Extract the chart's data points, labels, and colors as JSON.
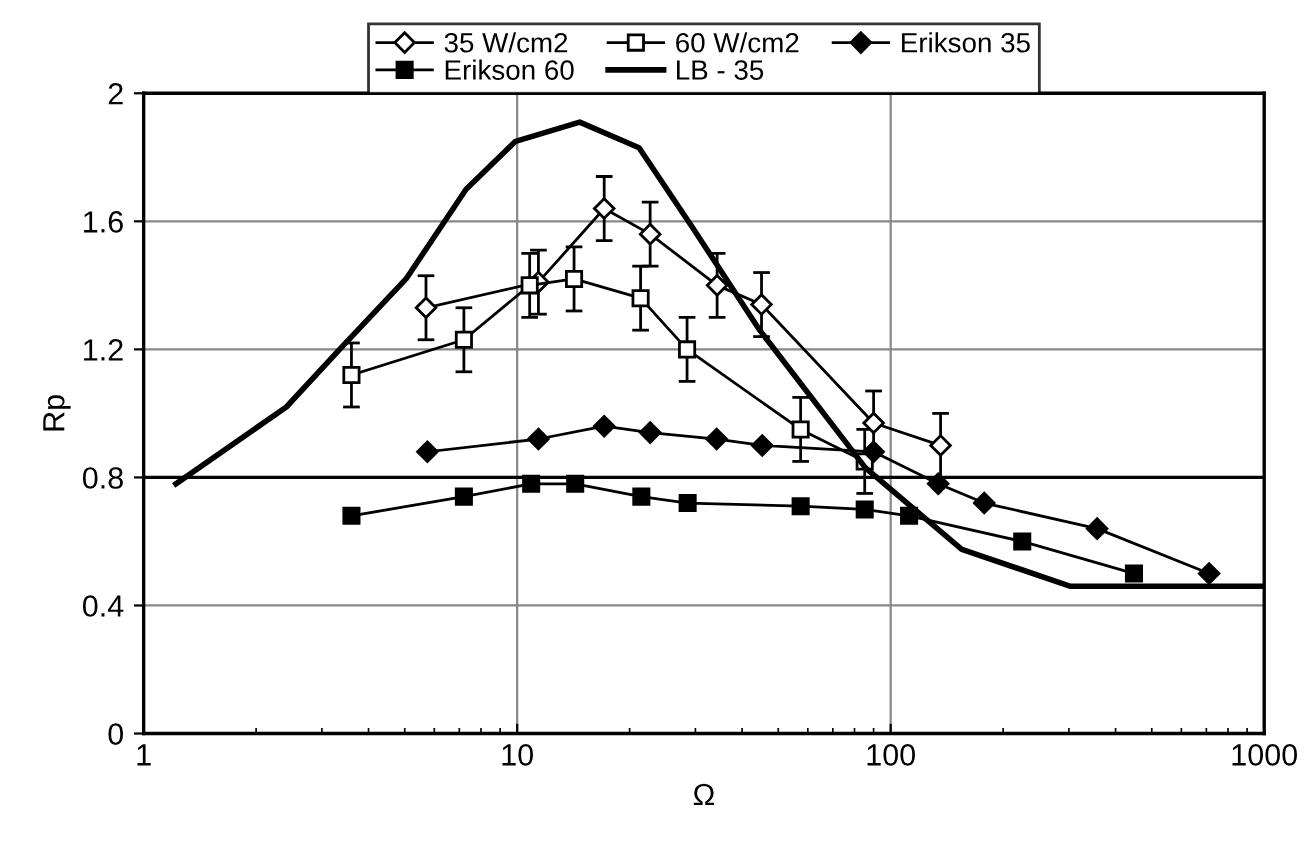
{
  "chart_data": {
    "type": "line",
    "xlabel": "Ω",
    "ylabel": "Rp",
    "log": "x",
    "xlim": [
      1,
      1000
    ],
    "xticks": [
      1,
      10,
      100,
      1000
    ],
    "ylim": [
      0,
      2
    ],
    "yticks": [
      0,
      {
        "value": 0.4,
        "label": "0.4"
      },
      {
        "value": 0.8,
        "label": "0.8"
      },
      {
        "value": 1.2,
        "label": "1.2"
      },
      {
        "value": 1.6,
        "label": "1.6"
      },
      2
    ],
    "grid": true,
    "legend": "top",
    "ref_lines": [
      {
        "axis": "y",
        "value": 0.8,
        "color": "#000000"
      }
    ],
    "series": [
      {
        "name": "35 W/cm2",
        "color": "#000000",
        "marker": "diamond",
        "x": [
          5.7,
          11.4,
          17.1,
          22.7,
          34.3,
          45.1,
          90,
          136
        ],
        "values": [
          1.33,
          1.41,
          1.64,
          1.56,
          1.4,
          1.34,
          0.97,
          0.9
        ],
        "errors": [
          0.1,
          0.1,
          0.1,
          0.1,
          0.1,
          0.1,
          0.1,
          0.1
        ]
      },
      {
        "name": "60 W/cm2",
        "color": "#000000",
        "marker": "square",
        "x": [
          3.6,
          7.2,
          10.8,
          14.2,
          21.4,
          28.5,
          57.4,
          85.2
        ],
        "values": [
          1.12,
          1.23,
          1.4,
          1.42,
          1.36,
          1.2,
          0.95,
          0.85
        ],
        "errors": [
          0.1,
          0.1,
          0.1,
          0.1,
          0.1,
          0.1,
          0.1,
          0.1
        ]
      },
      {
        "name": "Erikson 35",
        "color": "#000000",
        "marker": "diamond",
        "x": [
          5.75,
          11.4,
          17.1,
          22.7,
          34.2,
          45.3,
          90,
          134,
          178,
          357,
          712
        ],
        "values": [
          0.88,
          0.92,
          0.96,
          0.94,
          0.92,
          0.9,
          0.88,
          0.78,
          0.72,
          0.64,
          0.5
        ]
      },
      {
        "name": "Erikson 60",
        "color": "#000000",
        "marker": "square",
        "x": [
          3.6,
          7.2,
          10.9,
          14.3,
          21.5,
          28.6,
          57.4,
          85.2,
          112,
          225,
          448
        ],
        "values": [
          0.68,
          0.74,
          0.78,
          0.78,
          0.74,
          0.72,
          0.71,
          0.7,
          0.68,
          0.6,
          0.5
        ]
      },
      {
        "name": "LB - 35",
        "color": "#000000",
        "marker": "none",
        "x": [
          1.22,
          2.41,
          3.41,
          5.04,
          7.3,
          9.9,
          14.7,
          21.2,
          29.5,
          44.6,
          85.6,
          155,
          303,
          1000
        ],
        "values": [
          0.78,
          1.02,
          1.21,
          1.42,
          1.7,
          1.85,
          1.91,
          1.83,
          1.58,
          1.26,
          0.83,
          0.575,
          0.46,
          0.46
        ]
      }
    ]
  }
}
